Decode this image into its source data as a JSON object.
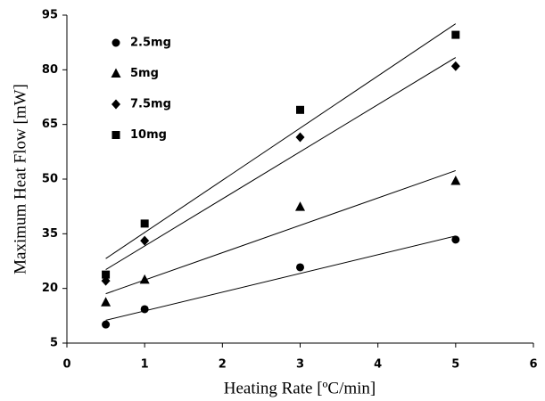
{
  "chart_data": {
    "type": "scatter",
    "x_label": "Heating Rate [ºC/min]",
    "y_label": "Maximum Heat Flow [mW]",
    "xlim": [
      0,
      6
    ],
    "xticks": [
      0,
      1,
      2,
      3,
      4,
      5,
      6
    ],
    "ylim": [
      5,
      95
    ],
    "yticks": [
      5,
      20,
      35,
      50,
      65,
      80,
      95
    ],
    "trendline": "linear",
    "grid": false,
    "legend": "upper-left",
    "series": [
      {
        "name": "2.5mg",
        "color": "#000000",
        "marker": "circle",
        "x": [
          0.5,
          1,
          3,
          5
        ],
        "values": [
          10.1,
          14.3,
          25.8,
          33.4
        ]
      },
      {
        "name": "5mg",
        "color": "#000000",
        "marker": "triangle",
        "x": [
          0.5,
          1,
          3,
          5
        ],
        "values": [
          16.2,
          22.4,
          42.4,
          49.5
        ]
      },
      {
        "name": "7.5mg",
        "color": "#000000",
        "marker": "diamond",
        "x": [
          0.5,
          1,
          3,
          5
        ],
        "values": [
          22.1,
          33.1,
          61.5,
          81
        ]
      },
      {
        "name": "10mg",
        "color": "#000000",
        "marker": "square",
        "x": [
          0.5,
          1,
          3,
          5
        ],
        "values": [
          23.8,
          37.8,
          69,
          89.6
        ]
      }
    ]
  }
}
